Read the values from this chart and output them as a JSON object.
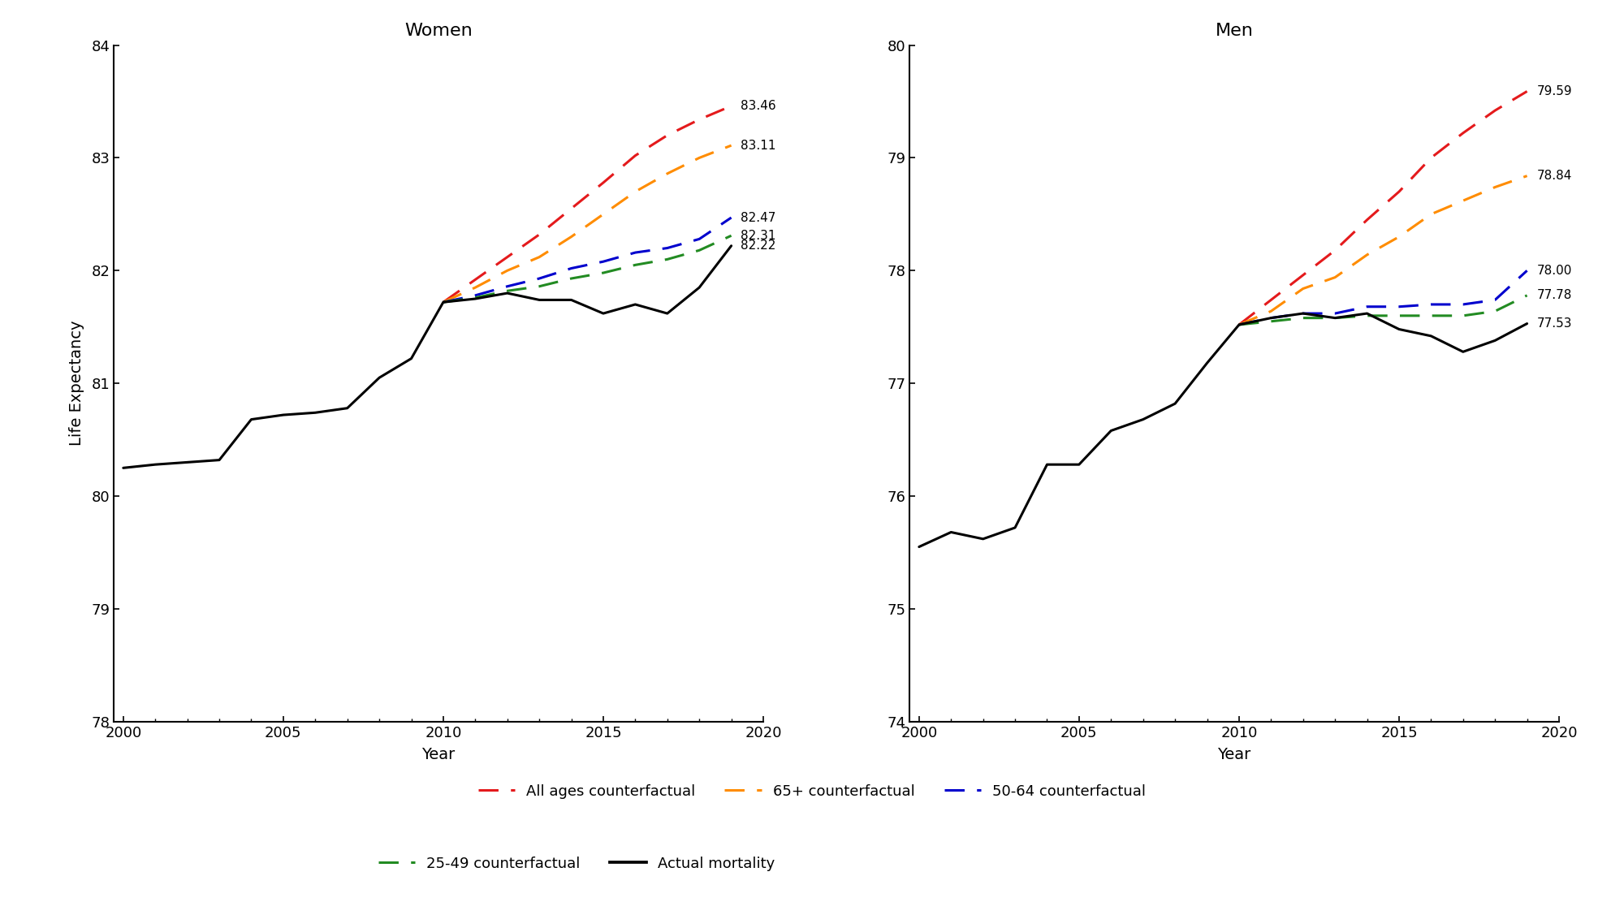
{
  "women_actual": {
    "years": [
      2000,
      2001,
      2002,
      2003,
      2004,
      2005,
      2006,
      2007,
      2008,
      2009,
      2010,
      2011,
      2012,
      2013,
      2014,
      2015,
      2016,
      2017,
      2018,
      2019
    ],
    "values": [
      80.25,
      80.28,
      80.3,
      80.32,
      80.68,
      80.72,
      80.74,
      80.78,
      81.05,
      81.22,
      81.72,
      81.75,
      81.8,
      81.74,
      81.74,
      81.62,
      81.7,
      81.62,
      81.85,
      82.22
    ]
  },
  "men_actual": {
    "years": [
      2000,
      2001,
      2002,
      2003,
      2004,
      2005,
      2006,
      2007,
      2008,
      2009,
      2010,
      2011,
      2012,
      2013,
      2014,
      2015,
      2016,
      2017,
      2018,
      2019
    ],
    "values": [
      75.55,
      75.68,
      75.62,
      75.72,
      76.28,
      76.28,
      76.58,
      76.68,
      76.82,
      77.18,
      77.52,
      77.58,
      77.62,
      77.58,
      77.62,
      77.48,
      77.42,
      77.28,
      77.38,
      77.53
    ]
  },
  "women_counterfactuals": {
    "all_ages": {
      "years": [
        2010,
        2011,
        2012,
        2013,
        2014,
        2015,
        2016,
        2017,
        2018,
        2019
      ],
      "values": [
        81.72,
        81.92,
        82.12,
        82.32,
        82.55,
        82.78,
        83.02,
        83.2,
        83.34,
        83.46
      ]
    },
    "age65plus": {
      "years": [
        2010,
        2011,
        2012,
        2013,
        2014,
        2015,
        2016,
        2017,
        2018,
        2019
      ],
      "values": [
        81.72,
        81.85,
        82.0,
        82.12,
        82.3,
        82.5,
        82.7,
        82.86,
        83.0,
        83.11
      ]
    },
    "age50_64": {
      "years": [
        2010,
        2011,
        2012,
        2013,
        2014,
        2015,
        2016,
        2017,
        2018,
        2019
      ],
      "values": [
        81.72,
        81.78,
        81.86,
        81.93,
        82.02,
        82.08,
        82.16,
        82.2,
        82.28,
        82.47
      ]
    },
    "age25_49": {
      "years": [
        2010,
        2011,
        2012,
        2013,
        2014,
        2015,
        2016,
        2017,
        2018,
        2019
      ],
      "values": [
        81.72,
        81.76,
        81.82,
        81.86,
        81.93,
        81.98,
        82.05,
        82.1,
        82.18,
        82.31
      ]
    }
  },
  "men_counterfactuals": {
    "all_ages": {
      "years": [
        2010,
        2011,
        2012,
        2013,
        2014,
        2015,
        2016,
        2017,
        2018,
        2019
      ],
      "values": [
        77.52,
        77.74,
        77.96,
        78.18,
        78.45,
        78.7,
        79.0,
        79.22,
        79.42,
        79.59
      ]
    },
    "age65plus": {
      "years": [
        2010,
        2011,
        2012,
        2013,
        2014,
        2015,
        2016,
        2017,
        2018,
        2019
      ],
      "values": [
        77.52,
        77.64,
        77.84,
        77.94,
        78.14,
        78.3,
        78.5,
        78.62,
        78.74,
        78.84
      ]
    },
    "age50_64": {
      "years": [
        2010,
        2011,
        2012,
        2013,
        2014,
        2015,
        2016,
        2017,
        2018,
        2019
      ],
      "values": [
        77.52,
        77.58,
        77.62,
        77.62,
        77.68,
        77.68,
        77.7,
        77.7,
        77.74,
        78.0
      ]
    },
    "age25_49": {
      "years": [
        2010,
        2011,
        2012,
        2013,
        2014,
        2015,
        2016,
        2017,
        2018,
        2019
      ],
      "values": [
        77.52,
        77.55,
        77.58,
        77.58,
        77.6,
        77.6,
        77.6,
        77.6,
        77.64,
        77.78
      ]
    }
  },
  "colors": {
    "all_ages": "#e41a1c",
    "age65plus": "#ff8c00",
    "age50_64": "#0000cd",
    "age25_49": "#228b22",
    "actual": "#000000"
  },
  "women_end_labels": {
    "all_ages": "83.46",
    "age65plus": "83.11",
    "age50_64": "82.47",
    "age25_49": "82.31",
    "actual": "82.22"
  },
  "men_end_labels": {
    "all_ages": "79.59",
    "age65plus": "78.84",
    "age50_64": "78.00",
    "age25_49": "77.78",
    "actual": "77.53"
  },
  "women_ylim": [
    78.0,
    84.0
  ],
  "men_ylim": [
    74.0,
    80.0
  ],
  "women_yticks": [
    78,
    79,
    80,
    81,
    82,
    83,
    84
  ],
  "men_yticks": [
    74,
    75,
    76,
    77,
    78,
    79,
    80
  ],
  "xticks": [
    2000,
    2005,
    2010,
    2015,
    2020
  ],
  "xmin": 2000,
  "xmax": 2019,
  "women_title": "Women",
  "men_title": "Men",
  "ylabel": "Life Expectancy",
  "xlabel": "Year",
  "dashes": [
    8,
    5
  ],
  "linewidth": 2.2,
  "label_fontsize": 11,
  "tick_fontsize": 13,
  "title_fontsize": 16,
  "axis_label_fontsize": 14,
  "legend_fontsize": 13
}
